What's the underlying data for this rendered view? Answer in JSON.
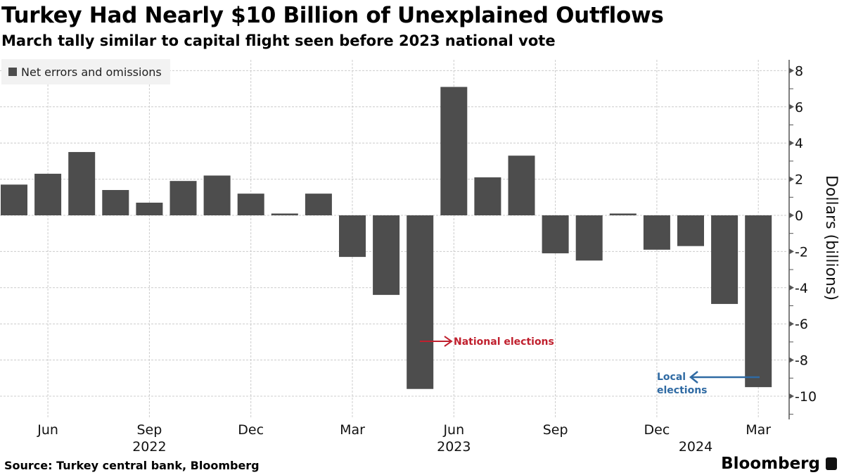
{
  "chart_data": {
    "type": "bar",
    "title": "Turkey Had Nearly $10 Billion of Unexplained Outflows",
    "subtitle": "March tally similar to capital flight seen before 2023 national vote",
    "ylabel": "Dollars (billions)",
    "ylim": [
      -11,
      8.5
    ],
    "yticks": [
      8,
      6,
      4,
      2,
      0,
      -2,
      -4,
      -6,
      -8,
      -10
    ],
    "grid": true,
    "legend_placement": "top-left",
    "series": [
      {
        "name": "Net errors and omissions",
        "color": "#4d4d4d",
        "values": [
          1.7,
          2.3,
          3.5,
          1.4,
          0.7,
          1.9,
          2.2,
          1.2,
          0.1,
          1.2,
          -2.3,
          -4.4,
          -9.6,
          7.1,
          2.1,
          3.3,
          -2.1,
          -2.5,
          0.1,
          -1.9,
          -1.7,
          -4.9,
          -9.5
        ]
      }
    ],
    "categories": [
      "2022-05",
      "2022-06",
      "2022-07",
      "2022-08",
      "2022-09",
      "2022-10",
      "2022-11",
      "2022-12",
      "2023-01",
      "2023-02",
      "2023-03",
      "2023-04",
      "2023-05",
      "2023-06",
      "2023-07",
      "2023-08",
      "2023-09",
      "2023-10",
      "2023-11",
      "2023-12",
      "2024-01",
      "2024-02",
      "2024-03"
    ],
    "xticks": [
      {
        "i": 1,
        "label": "Jun"
      },
      {
        "i": 4,
        "label": "Sep"
      },
      {
        "i": 7,
        "label": "Dec"
      },
      {
        "i": 10,
        "label": "Mar"
      },
      {
        "i": 13,
        "label": "Jun"
      },
      {
        "i": 16,
        "label": "Sep"
      },
      {
        "i": 19,
        "label": "Dec"
      },
      {
        "i": 22,
        "label": "Mar"
      }
    ],
    "year_labels": [
      {
        "i": 4,
        "label": "2022"
      },
      {
        "i": 13,
        "label": "2023"
      },
      {
        "i": 20,
        "label": "2024"
      }
    ],
    "annotations": [
      {
        "text": "National elections",
        "category": "2023-05",
        "y": -6.9,
        "color": "#c0202e"
      },
      {
        "text_lines": [
          "Local",
          "elections"
        ],
        "category": "2024-03",
        "y": -9,
        "color": "#2f6aa3"
      }
    ]
  },
  "source": "Source: Turkey central bank, Bloomberg",
  "logo": "Bloomberg"
}
